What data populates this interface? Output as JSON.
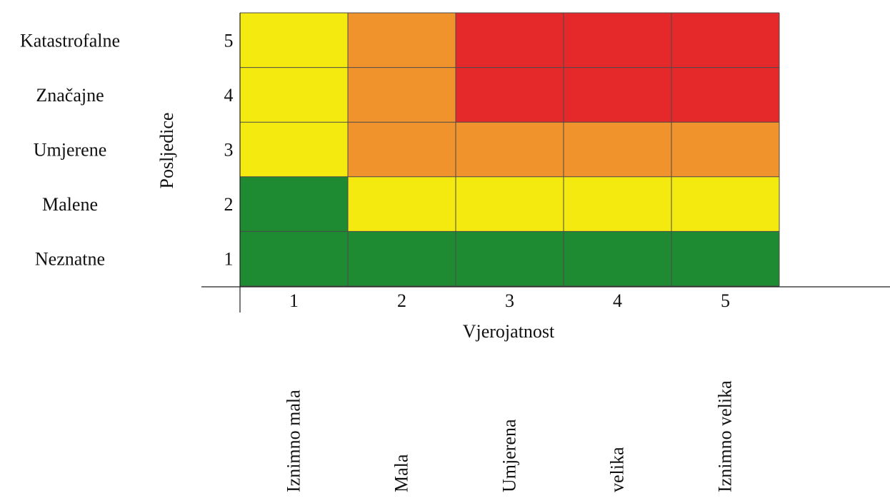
{
  "chart_data": {
    "type": "heatmap",
    "title": "",
    "xlabel": "Vjerojatnost",
    "ylabel": "Posljedice",
    "x_ticks": [
      "1",
      "2",
      "3",
      "4",
      "5"
    ],
    "y_ticks": [
      "1",
      "2",
      "3",
      "4",
      "5"
    ],
    "x_categories": [
      "Iznimno mala",
      "Mala",
      "Umjerena",
      "velika",
      "Iznimno velika"
    ],
    "y_categories": [
      "Neznatne",
      "Malene",
      "Umjerene",
      "Značajne",
      "Katastrofalne"
    ],
    "levels": {
      "G": "#1e8a32",
      "Y": "#f5ea10",
      "O": "#f0932c",
      "R": "#e5292a"
    },
    "rows_top_to_bottom": [
      {
        "y": 5,
        "cells": [
          "Y",
          "O",
          "R",
          "R",
          "R"
        ]
      },
      {
        "y": 4,
        "cells": [
          "Y",
          "O",
          "R",
          "R",
          "R"
        ]
      },
      {
        "y": 3,
        "cells": [
          "Y",
          "O",
          "O",
          "O",
          "O"
        ]
      },
      {
        "y": 2,
        "cells": [
          "G",
          "Y",
          "Y",
          "Y",
          "Y"
        ]
      },
      {
        "y": 1,
        "cells": [
          "G",
          "G",
          "G",
          "G",
          "G"
        ]
      }
    ],
    "grid": true,
    "legend": "none"
  }
}
